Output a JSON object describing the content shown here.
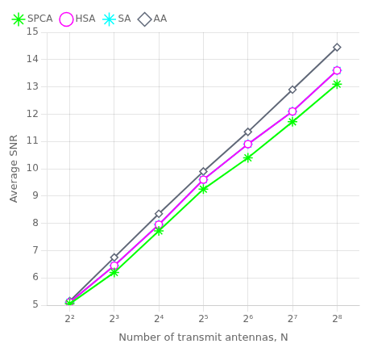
{
  "chart_data": {
    "type": "line",
    "categories": [
      "2²",
      "2³",
      "2⁴",
      "2⁵",
      "2⁶",
      "2⁷",
      "2⁸"
    ],
    "series": [
      {
        "name": "SPCA",
        "color": "#00ff00",
        "marker": "star",
        "values": [
          5.05,
          6.2,
          7.72,
          9.25,
          10.4,
          11.72,
          13.1
        ]
      },
      {
        "name": "HSA",
        "color": "#ff00ff",
        "marker": "circle",
        "values": [
          5.1,
          6.45,
          7.95,
          9.6,
          10.9,
          12.1,
          13.6
        ]
      },
      {
        "name": "SA",
        "color": "#00ffff",
        "marker": "star",
        "values": [
          5.1,
          6.45,
          7.95,
          9.6,
          10.9,
          12.1,
          13.6
        ]
      },
      {
        "name": "AA",
        "color": "#606878",
        "marker": "diamond",
        "values": [
          5.15,
          6.75,
          8.35,
          9.9,
          11.35,
          12.9,
          14.45
        ]
      }
    ],
    "xlabel": "Number of transmit antennas, N",
    "ylabel": "Average SNR",
    "ylim": [
      5,
      15
    ],
    "yticks": [
      5,
      6,
      7,
      8,
      9,
      10,
      11,
      12,
      13,
      14,
      15
    ],
    "grid": true,
    "legend": "upper left"
  }
}
